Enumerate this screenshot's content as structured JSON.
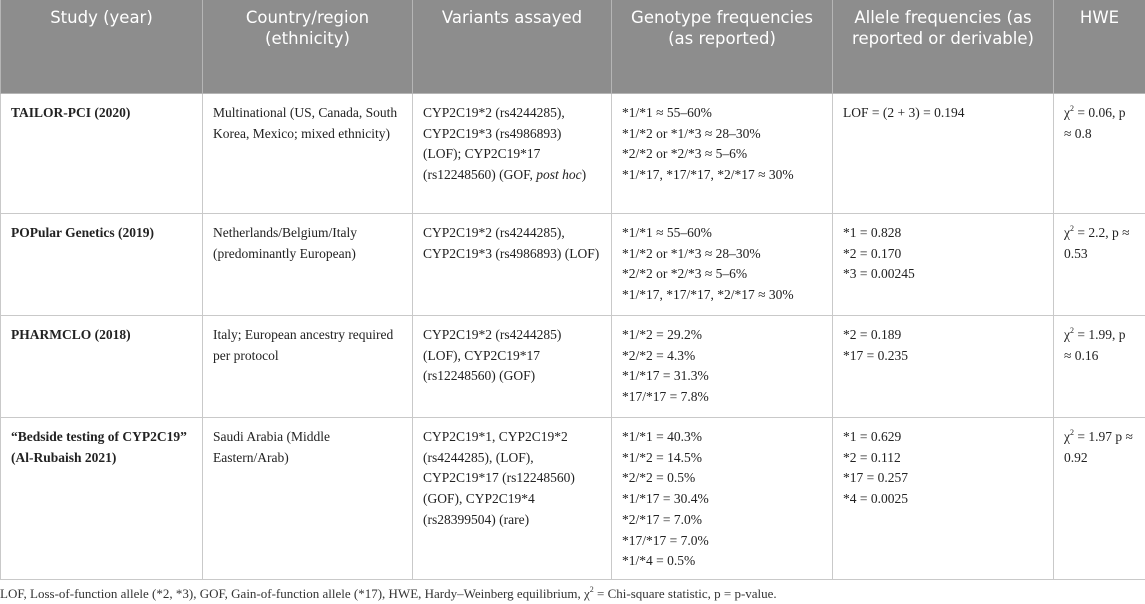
{
  "headers": [
    "Study (year)",
    "Country/region (ethnicity)",
    "Variants assayed",
    "Genotype frequencies (as reported)",
    "Allele frequencies (as reported or derivable)",
    "HWE"
  ],
  "rows": [
    {
      "study": "TAILOR-PCI (2020)",
      "country": "Multinational (US, Canada, South Korea, Mexico; mixed ethnicity)",
      "variants": "CYP2C19*2 (rs4244285), CYP2C19*3 (rs4986893) (LOF); CYP2C19*17 (rs12248560) (GOF,",
      "variants_italic": "post hoc",
      "variants_tail": ")",
      "genotypes": [
        "*1/*1 ≈ 55–60%",
        "*1/*2 or *1/*3 ≈ 28–30%",
        "*2/*2 or *2/*3 ≈ 5–6%",
        "*1/*17, *17/*17, *2/*17 ≈ 30%"
      ],
      "alleles": [
        "LOF = (2 + 3) = 0.194"
      ],
      "hwe_chi": "χ",
      "hwe_sup": "2",
      "hwe_rest": " = 0.06, p ≈ 0.8"
    },
    {
      "study": "POPular Genetics (2019)",
      "country": "Netherlands/Belgium/Italy (predominantly European)",
      "variants": "CYP2C19*2 (rs4244285), CYP2C19*3 (rs4986893) (LOF)",
      "genotypes": [
        "*1/*1 ≈ 55–60%",
        "*1/*2 or *1/*3 ≈ 28–30%",
        "*2/*2 or *2/*3 ≈ 5–6%",
        "*1/*17, *17/*17, *2/*17 ≈ 30%"
      ],
      "alleles": [
        "*1 = 0.828",
        "*2 = 0.170",
        "*3 = 0.00245"
      ],
      "hwe_chi": "χ",
      "hwe_sup": "2",
      "hwe_rest": " = 2.2, p ≈ 0.53"
    },
    {
      "study": "PHARMCLO (2018)",
      "country": "Italy; European ancestry required per protocol",
      "variants": "CYP2C19*2 (rs4244285) (LOF), CYP2C19*17 (rs12248560) (GOF)",
      "genotypes": [
        "*1/*2 = 29.2%",
        "*2/*2 = 4.3%",
        "*1/*17 = 31.3%",
        "*17/*17 = 7.8%"
      ],
      "alleles": [
        "*2 = 0.189",
        "*17 = 0.235"
      ],
      "hwe_chi": "χ",
      "hwe_sup": "2",
      "hwe_rest": " = 1.99, p ≈ 0.16"
    },
    {
      "study": "“Bedside testing of CYP2C19” (Al-Rubaish 2021)",
      "country": "Saudi Arabia (Middle Eastern/Arab)",
      "variants": "CYP2C19*1, CYP2C19*2 (rs4244285), (LOF), CYP2C19*17 (rs12248560) (GOF), CYP2C19*4 (rs28399504) (rare)",
      "genotypes": [
        "*1/*1 = 40.3%",
        "*1/*2 = 14.5%",
        "*2/*2 = 0.5%",
        "*1/*17 = 30.4%",
        "*2/*17 = 7.0%",
        "*17/*17 = 7.0%",
        "*1/*4 = 0.5%"
      ],
      "alleles": [
        "*1 = 0.629",
        "*2 = 0.112",
        "*17 = 0.257",
        "*4 = 0.0025"
      ],
      "hwe_chi": "χ",
      "hwe_sup": "2",
      "hwe_rest": " = 1.97 p ≈ 0.92"
    }
  ],
  "footnote": {
    "before": "LOF, Loss-of-function allele (*2, *3), GOF, Gain-of-function allele (*17), HWE, Hardy–Weinberg equilibrium, χ",
    "sup": "2",
    "after": " = Chi-square statistic, p = p-value."
  }
}
